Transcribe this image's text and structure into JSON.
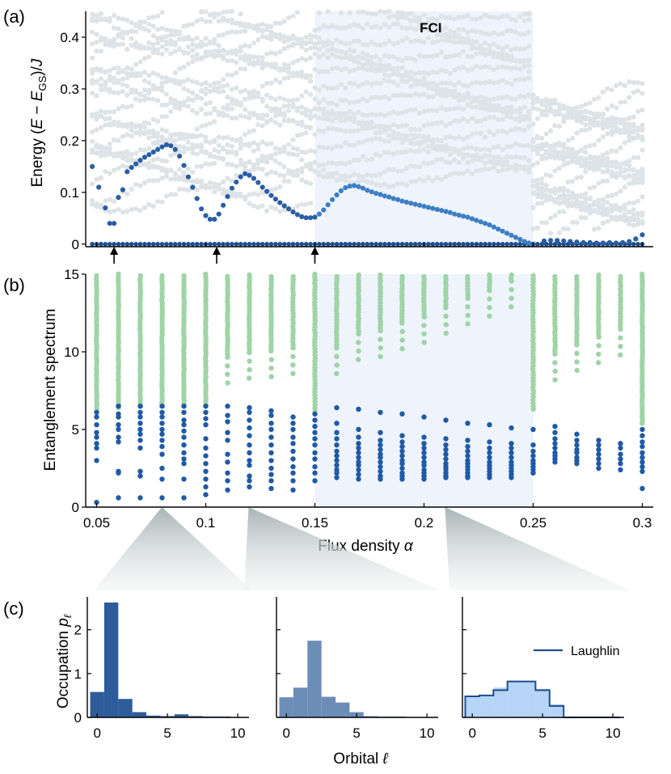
{
  "panel_labels": {
    "a": "(a)",
    "b": "(b)",
    "c": "(c)"
  },
  "chart_data": [
    {
      "id": "energy",
      "type": "scatter",
      "title": "",
      "ylabel_parts": [
        "Energy (",
        "E",
        " − ",
        "E",
        "GS",
        ")/",
        "J"
      ],
      "xlim": [
        0.045,
        0.305
      ],
      "ylim": [
        -0.005,
        0.45
      ],
      "yticks": [
        0,
        0.1,
        0.2,
        0.3,
        0.4
      ],
      "ytick_labels": [
        "0",
        "0.1",
        "0.2",
        "0.3",
        "0.4"
      ],
      "shaded_region": {
        "x_start": 0.15,
        "x_end": 0.25,
        "label": "FCI"
      },
      "arrows_at_x": [
        0.058,
        0.105,
        0.15
      ],
      "colors": {
        "ground": "#1f4e8c",
        "gap": "#2a5ea5",
        "excited": "#dde3e6",
        "shade": "#eef3fc"
      },
      "gap_points": [
        [
          0.048,
          0.15
        ],
        [
          0.051,
          0.11
        ],
        [
          0.054,
          0.07
        ],
        [
          0.056,
          0.04
        ],
        [
          0.058,
          0.04
        ],
        [
          0.06,
          0.09
        ],
        [
          0.062,
          0.105
        ],
        [
          0.064,
          0.14
        ],
        [
          0.066,
          0.148
        ],
        [
          0.068,
          0.155
        ],
        [
          0.07,
          0.162
        ],
        [
          0.072,
          0.168
        ],
        [
          0.074,
          0.173
        ],
        [
          0.076,
          0.178
        ],
        [
          0.078,
          0.183
        ],
        [
          0.08,
          0.188
        ],
        [
          0.082,
          0.192
        ],
        [
          0.084,
          0.19
        ],
        [
          0.086,
          0.183
        ],
        [
          0.088,
          0.17
        ],
        [
          0.09,
          0.152
        ],
        [
          0.092,
          0.13
        ],
        [
          0.094,
          0.11
        ],
        [
          0.096,
          0.088
        ],
        [
          0.098,
          0.068
        ],
        [
          0.1,
          0.055
        ],
        [
          0.102,
          0.048
        ],
        [
          0.104,
          0.048
        ],
        [
          0.106,
          0.058
        ],
        [
          0.108,
          0.075
        ],
        [
          0.11,
          0.092
        ],
        [
          0.112,
          0.108
        ],
        [
          0.114,
          0.12
        ],
        [
          0.116,
          0.13
        ],
        [
          0.118,
          0.136
        ],
        [
          0.12,
          0.133
        ],
        [
          0.122,
          0.127
        ],
        [
          0.124,
          0.119
        ],
        [
          0.126,
          0.11
        ],
        [
          0.128,
          0.102
        ],
        [
          0.13,
          0.094
        ],
        [
          0.132,
          0.087
        ],
        [
          0.134,
          0.08
        ],
        [
          0.136,
          0.074
        ],
        [
          0.138,
          0.068
        ],
        [
          0.14,
          0.062
        ],
        [
          0.142,
          0.057
        ],
        [
          0.144,
          0.053
        ],
        [
          0.146,
          0.051
        ],
        [
          0.148,
          0.051
        ],
        [
          0.15,
          0.052
        ],
        [
          0.152,
          0.058
        ],
        [
          0.154,
          0.066
        ],
        [
          0.156,
          0.076
        ],
        [
          0.158,
          0.086
        ],
        [
          0.16,
          0.095
        ],
        [
          0.162,
          0.103
        ],
        [
          0.164,
          0.109
        ],
        [
          0.166,
          0.112
        ],
        [
          0.168,
          0.113
        ],
        [
          0.17,
          0.111
        ],
        [
          0.172,
          0.108
        ],
        [
          0.174,
          0.104
        ],
        [
          0.176,
          0.101
        ],
        [
          0.178,
          0.098
        ],
        [
          0.18,
          0.096
        ],
        [
          0.182,
          0.093
        ],
        [
          0.184,
          0.091
        ],
        [
          0.186,
          0.088
        ],
        [
          0.188,
          0.086
        ],
        [
          0.19,
          0.083
        ],
        [
          0.192,
          0.081
        ],
        [
          0.194,
          0.079
        ],
        [
          0.196,
          0.077
        ],
        [
          0.198,
          0.075
        ],
        [
          0.2,
          0.073
        ],
        [
          0.202,
          0.071
        ],
        [
          0.204,
          0.069
        ],
        [
          0.206,
          0.067
        ],
        [
          0.208,
          0.065
        ],
        [
          0.21,
          0.063
        ],
        [
          0.212,
          0.061
        ],
        [
          0.214,
          0.058
        ],
        [
          0.216,
          0.056
        ],
        [
          0.218,
          0.054
        ],
        [
          0.22,
          0.052
        ],
        [
          0.222,
          0.049
        ],
        [
          0.224,
          0.046
        ],
        [
          0.226,
          0.043
        ],
        [
          0.228,
          0.04
        ],
        [
          0.23,
          0.037
        ],
        [
          0.232,
          0.033
        ],
        [
          0.234,
          0.029
        ],
        [
          0.236,
          0.025
        ],
        [
          0.238,
          0.021
        ],
        [
          0.24,
          0.017
        ],
        [
          0.242,
          0.013
        ],
        [
          0.244,
          0.009
        ],
        [
          0.246,
          0.005
        ],
        [
          0.248,
          0.002
        ],
        [
          0.25,
          0.0
        ],
        [
          0.255,
          0.006
        ],
        [
          0.258,
          0.007
        ],
        [
          0.261,
          0.007
        ],
        [
          0.264,
          0.006
        ],
        [
          0.267,
          0.005
        ],
        [
          0.27,
          0.004
        ],
        [
          0.273,
          0.003
        ],
        [
          0.276,
          0.003
        ],
        [
          0.279,
          0.002
        ],
        [
          0.282,
          0.002
        ],
        [
          0.285,
          0.003
        ],
        [
          0.288,
          0.002
        ],
        [
          0.291,
          0.003
        ],
        [
          0.294,
          0.005
        ],
        [
          0.297,
          0.01
        ],
        [
          0.3,
          0.018
        ]
      ]
    },
    {
      "id": "entanglement",
      "type": "scatter",
      "ylabel": "Entanglement spectrum",
      "xlabel_text": "Flux density ",
      "xlabel_symbol": "α",
      "xlim": [
        0.045,
        0.305
      ],
      "ylim": [
        0,
        15
      ],
      "xticks": [
        0.05,
        0.1,
        0.15,
        0.2,
        0.25,
        0.3
      ],
      "xtick_labels": [
        "0.05",
        "0.1",
        "0.15",
        "0.2",
        "0.25",
        "0.3"
      ],
      "yticks": [
        0,
        5,
        10,
        15
      ],
      "ytick_labels": [
        "0",
        "5",
        "10",
        "15"
      ],
      "shaded_region": {
        "x_start": 0.15,
        "x_end": 0.25
      },
      "columns_alpha": [
        0.05,
        0.06,
        0.07,
        0.08,
        0.09,
        0.1,
        0.11,
        0.12,
        0.13,
        0.14,
        0.15,
        0.16,
        0.17,
        0.18,
        0.19,
        0.2,
        0.21,
        0.22,
        0.23,
        0.24,
        0.25,
        0.26,
        0.27,
        0.28,
        0.29,
        0.3
      ],
      "green_top_start": [
        6.3,
        6.4,
        6.5,
        6.5,
        6.5,
        6.6,
        8.0,
        8.3,
        8.4,
        8.6,
        6.2,
        8.6,
        9.5,
        9.7,
        10.2,
        10.6,
        11.2,
        11.8,
        12.3,
        12.9,
        6.3,
        8.2,
        8.8,
        9.3,
        9.8,
        5.4
      ],
      "blue_levels": {
        "0.05": [
          0.3,
          3.0,
          3.8,
          4.1,
          4.5,
          4.8,
          5.3,
          5.8,
          6.1
        ],
        "0.06": [
          0.6,
          2.2,
          2.3,
          4.2,
          4.5,
          5.0,
          5.3,
          5.8,
          6.0,
          6.5
        ],
        "0.07": [
          0.6,
          2.0,
          2.3,
          3.8,
          4.3,
          4.7,
          5.0,
          5.4,
          5.8,
          6.1,
          6.5
        ],
        "0.08": [
          0.6,
          1.8,
          2.5,
          3.4,
          3.9,
          4.3,
          4.7,
          5.0,
          5.4,
          5.8,
          6.1,
          6.5
        ],
        "0.09": [
          0.6,
          1.8,
          2.8,
          3.1,
          3.5,
          4.0,
          4.5,
          4.9,
          5.3,
          5.6,
          6.1,
          6.5
        ],
        "0.1": [
          0.8,
          1.3,
          1.8,
          2.3,
          2.8,
          3.3,
          3.8,
          4.4,
          5.3,
          5.7,
          6.1,
          6.5
        ],
        "0.11": [
          1.1,
          1.7,
          2.2,
          2.9,
          3.4,
          4.3,
          4.8,
          5.5,
          5.9,
          6.5
        ],
        "0.12": [
          1.3,
          1.7,
          2.0,
          2.7,
          3.0,
          3.5,
          4.0,
          4.6,
          5.1,
          5.6,
          6.1,
          6.4
        ],
        "0.13": [
          1.2,
          1.7,
          2.1,
          2.5,
          3.0,
          3.5,
          4.0,
          4.5,
          5.0,
          5.4,
          5.9,
          6.2
        ],
        "0.14": [
          1.1,
          1.7,
          2.2,
          2.6,
          3.1,
          3.6,
          4.1,
          4.5,
          5.0,
          5.4,
          5.8
        ],
        "0.15": [
          1.7,
          2.2,
          2.6,
          3.1,
          3.5,
          4.0,
          4.4,
          4.8,
          5.2,
          5.6,
          6.0
        ],
        "0.16": [
          1.9,
          2.2,
          2.4,
          2.7,
          3.0,
          3.3,
          3.6,
          4.0,
          4.4,
          4.8,
          5.4,
          6.4
        ],
        "0.17": [
          1.8,
          2.1,
          2.4,
          2.7,
          2.9,
          3.2,
          3.5,
          3.8,
          4.1,
          4.5,
          5.0,
          6.3
        ],
        "0.18": [
          1.8,
          2.0,
          2.3,
          2.6,
          2.9,
          3.2,
          3.4,
          3.7,
          4.0,
          4.3,
          4.8,
          6.1
        ],
        "0.19": [
          1.8,
          2.0,
          2.2,
          2.5,
          2.8,
          3.0,
          3.3,
          3.6,
          3.9,
          4.2,
          4.6,
          6.0
        ],
        "0.2": [
          1.8,
          2.0,
          2.2,
          2.4,
          2.7,
          2.9,
          3.2,
          3.5,
          3.8,
          4.1,
          4.5,
          5.8
        ],
        "0.21": [
          1.9,
          2.0,
          2.2,
          2.4,
          2.6,
          2.8,
          3.1,
          3.4,
          3.7,
          4.0,
          4.4,
          5.6
        ],
        "0.22": [
          1.9,
          2.0,
          2.2,
          2.4,
          2.6,
          2.8,
          3.0,
          3.3,
          3.6,
          3.9,
          4.3,
          5.4
        ],
        "0.23": [
          1.9,
          2.1,
          2.3,
          2.5,
          2.7,
          2.9,
          3.2,
          3.5,
          3.8,
          4.2,
          5.3
        ],
        "0.24": [
          1.9,
          2.1,
          2.3,
          2.5,
          2.7,
          2.9,
          3.2,
          3.5,
          3.8,
          4.1,
          5.1
        ],
        "0.25": [
          2.2,
          2.4,
          2.6,
          2.8,
          3.0,
          3.3,
          3.6,
          4.0,
          5.0
        ],
        "0.26": [
          2.9,
          3.1,
          3.3,
          3.5,
          3.8,
          4.1,
          4.4,
          4.8,
          5.2
        ],
        "0.27": [
          2.8,
          3.0,
          3.2,
          3.5,
          3.7,
          4.0,
          4.3,
          4.7
        ],
        "0.28": [
          2.5,
          2.8,
          3.1,
          3.4,
          3.7,
          4.0,
          4.3
        ],
        "0.29": [
          2.4,
          2.8,
          3.1,
          3.4,
          3.8,
          4.1
        ],
        "0.3": [
          1.2,
          2.3,
          2.6,
          2.9,
          3.2,
          3.5,
          3.9,
          4.2,
          4.6,
          5.0
        ]
      },
      "colors": {
        "blue": "#1f5aa6",
        "green": "#9ed4a6",
        "shade": "#eef3fc"
      }
    },
    {
      "id": "occupation",
      "type": "bar",
      "ylabel_text": "Occupation  ",
      "ylabel_symbol": "p",
      "ylabel_sub": "ℓ",
      "xlabel_text": "Orbital ",
      "xlabel_symbol": "ℓ",
      "ylim": [
        0,
        2.75
      ],
      "yticks": [
        0,
        1,
        2
      ],
      "ytick_labels": [
        "0",
        "1",
        "2"
      ],
      "xlim": [
        -0.7,
        10.8
      ],
      "xticks": [
        0,
        5,
        10
      ],
      "xtick_labels": [
        "0",
        "5",
        "10"
      ],
      "legend": "Laughlin",
      "subpanels": [
        {
          "alpha": 0.08,
          "color": "#2e5b9a",
          "values": [
            0.58,
            2.62,
            0.42,
            0.12,
            0.04,
            0.03,
            0.07,
            0.03,
            0.02,
            0.02,
            0.01
          ]
        },
        {
          "alpha": 0.12,
          "color": "#6d8db9",
          "values": [
            0.46,
            0.68,
            1.75,
            0.47,
            0.34,
            0.12,
            0.03,
            0.02,
            0.02,
            0.01,
            0.01
          ]
        },
        {
          "alpha": 0.21,
          "color": "#b5d4f6",
          "values": [
            0.48,
            0.52,
            0.68,
            0.84,
            0.82,
            0.65,
            0.3,
            0.02,
            0.01,
            0.01,
            0.01
          ],
          "laughlin": [
            0.48,
            0.5,
            0.62,
            0.82,
            0.82,
            0.62,
            0.26,
            0.0,
            0.0,
            0.0,
            0.0
          ]
        }
      ]
    }
  ]
}
